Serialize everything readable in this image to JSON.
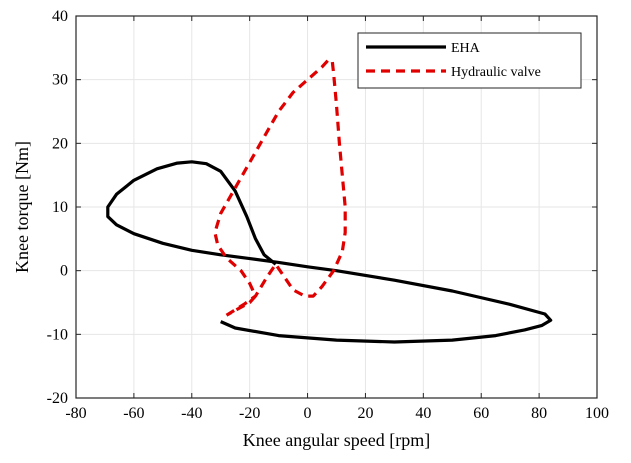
{
  "chart_data": {
    "type": "line",
    "title": "",
    "xlabel": "Knee angular speed [rpm]",
    "ylabel": "Knee torque [Nm]",
    "xlim": [
      -80,
      100
    ],
    "ylim": [
      -20,
      40
    ],
    "xticks": [
      -80,
      -60,
      -40,
      -20,
      0,
      20,
      40,
      60,
      80,
      100
    ],
    "yticks": [
      -20,
      -10,
      0,
      10,
      20,
      30,
      40
    ],
    "grid": true,
    "legend_position": "top-right",
    "series": [
      {
        "name": "EHA",
        "color": "#000000",
        "dash": "solid",
        "points": [
          [
            -30,
            -8
          ],
          [
            -25,
            -9
          ],
          [
            -10,
            -10.2
          ],
          [
            10,
            -10.9
          ],
          [
            30,
            -11.2
          ],
          [
            50,
            -10.9
          ],
          [
            65,
            -10.2
          ],
          [
            75,
            -9.3
          ],
          [
            81,
            -8.6
          ],
          [
            84,
            -7.8
          ],
          [
            82,
            -6.8
          ],
          [
            70,
            -5.3
          ],
          [
            50,
            -3.2
          ],
          [
            30,
            -1.5
          ],
          [
            10,
            0
          ],
          [
            0,
            0.6
          ],
          [
            -10,
            1.3
          ],
          [
            -20,
            1.9
          ],
          [
            -30,
            2.5
          ],
          [
            -40,
            3.2
          ],
          [
            -50,
            4.3
          ],
          [
            -60,
            5.8
          ],
          [
            -66,
            7.2
          ],
          [
            -69,
            8.5
          ],
          [
            -69,
            10
          ],
          [
            -66,
            12
          ],
          [
            -60,
            14.2
          ],
          [
            -52,
            16
          ],
          [
            -45,
            16.9
          ],
          [
            -40,
            17.1
          ],
          [
            -35,
            16.8
          ],
          [
            -30,
            15.6
          ],
          [
            -25,
            12.5
          ],
          [
            -21,
            8.5
          ],
          [
            -18,
            5
          ],
          [
            -15,
            2.5
          ],
          [
            -11,
            1
          ]
        ]
      },
      {
        "name": "Hydraulic valve",
        "color": "#e00000",
        "dash": "dashed",
        "points": [
          [
            -28,
            -7
          ],
          [
            -22,
            -5.3
          ],
          [
            -18,
            -4
          ],
          [
            -14,
            -1
          ],
          [
            -11,
            1
          ],
          [
            -8,
            -1
          ],
          [
            -5,
            -3
          ],
          [
            -1,
            -4
          ],
          [
            2,
            -4
          ],
          [
            5,
            -2.5
          ],
          [
            9,
            0
          ],
          [
            12,
            3
          ],
          [
            13,
            6
          ],
          [
            13,
            10
          ],
          [
            12,
            15
          ],
          [
            11,
            20
          ],
          [
            10,
            26
          ],
          [
            9,
            31
          ],
          [
            8.5,
            33
          ],
          [
            7,
            33
          ],
          [
            5,
            32
          ],
          [
            0,
            30
          ],
          [
            -5,
            28
          ],
          [
            -10,
            25
          ],
          [
            -15,
            21
          ],
          [
            -20,
            17
          ],
          [
            -25,
            13
          ],
          [
            -30,
            9
          ],
          [
            -32,
            6
          ],
          [
            -31,
            4
          ],
          [
            -28,
            2
          ],
          [
            -23,
            0
          ],
          [
            -20,
            -2
          ],
          [
            -18,
            -4
          ],
          [
            -20,
            -5
          ],
          [
            -28,
            -7
          ]
        ]
      }
    ]
  }
}
